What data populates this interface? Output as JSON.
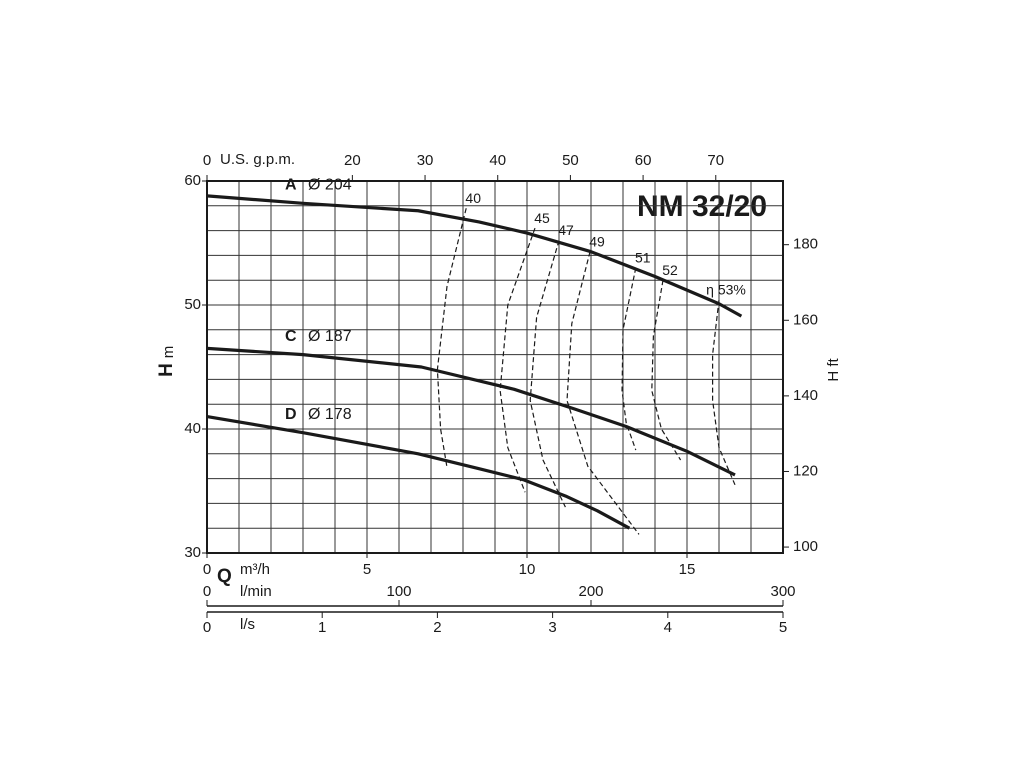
{
  "chart_data": {
    "type": "line",
    "title": "NM 32/20",
    "y_label_symbol": "H",
    "y_label_unit": "m",
    "x_label_symbol": "Q",
    "x_label_unit": "m³/h",
    "xlim": [
      0,
      18
    ],
    "xticks": [
      0,
      5,
      10,
      15
    ],
    "ylim": [
      30,
      60
    ],
    "yticks": [
      30,
      40,
      50,
      60
    ],
    "xgrid": [
      1,
      2,
      3,
      4,
      5,
      6,
      7,
      8,
      9,
      10,
      11,
      12,
      13,
      14,
      15,
      16,
      17
    ],
    "ygrid": [
      32,
      34,
      36,
      38,
      40,
      42,
      44,
      46,
      48,
      50,
      52,
      54,
      56,
      58
    ],
    "grid": true,
    "y2_label": "H ft",
    "y2lim": [
      98.43,
      196.85
    ],
    "y2ticks": [
      100,
      120,
      140,
      160,
      180
    ],
    "top_axis": {
      "label": "U.S. g.p.m.",
      "xlim": [
        0,
        79.25
      ],
      "xticks": [
        0,
        20,
        30,
        40,
        50,
        60,
        70
      ]
    },
    "lmin_axis": {
      "label": "l/min",
      "xlim": [
        0,
        300
      ],
      "xticks": [
        0,
        100,
        200,
        300
      ]
    },
    "ls_axis": {
      "label": "l/s",
      "xlim": [
        0,
        5
      ],
      "xticks": [
        0,
        1,
        2,
        3,
        4,
        5
      ]
    },
    "series": [
      {
        "name": "A",
        "diameter": "Ø 204",
        "color": "#1a1a1a",
        "x": [
          0,
          3,
          6.6,
          8.5,
          10,
          12,
          14,
          16,
          16.7
        ],
        "values": [
          58.8,
          58.2,
          57.6,
          56.7,
          55.8,
          54.3,
          52.3,
          50.1,
          49.1
        ]
      },
      {
        "name": "C",
        "diameter": "Ø 187",
        "color": "#1a1a1a",
        "x": [
          0,
          3,
          6.7,
          9.6,
          11.5,
          13.1,
          15,
          16.5
        ],
        "values": [
          46.5,
          46.0,
          45.0,
          43.2,
          41.6,
          40.2,
          38.2,
          36.3
        ]
      },
      {
        "name": "D",
        "diameter": "Ø 178",
        "color": "#1a1a1a",
        "x": [
          0,
          3,
          6.6,
          8.5,
          9.9,
          11.2,
          12.2,
          13.2
        ],
        "values": [
          41.0,
          39.7,
          38.0,
          36.8,
          35.9,
          34.6,
          33.4,
          32.0
        ]
      }
    ],
    "efficiency_series": [
      {
        "name": "40",
        "x": [
          8.1,
          7.5,
          7.2,
          7.3,
          7.5
        ],
        "values": [
          57.8,
          51.5,
          44.8,
          40.0,
          36.9
        ]
      },
      {
        "name": "45",
        "x": [
          10.25,
          9.4,
          9.16,
          9.4,
          9.94
        ],
        "values": [
          56.2,
          50.0,
          43.1,
          38.5,
          34.9
        ]
      },
      {
        "name": "47",
        "x": [
          11.0,
          10.3,
          10.1,
          10.5,
          11.2
        ],
        "values": [
          55.2,
          49.0,
          42.3,
          37.5,
          33.7
        ]
      },
      {
        "name": "49",
        "x": [
          11.97,
          11.4,
          11.25,
          11.9,
          13.5
        ],
        "values": [
          54.3,
          48.5,
          42.3,
          37.0,
          31.5
        ]
      },
      {
        "name": "51",
        "x": [
          13.4,
          13.0,
          12.97,
          13.1,
          13.4
        ],
        "values": [
          53.0,
          48.0,
          43.1,
          40.5,
          38.3
        ]
      },
      {
        "name": "52",
        "x": [
          14.25,
          13.95,
          13.9,
          14.2,
          14.8
        ],
        "values": [
          52.0,
          47.5,
          43.1,
          40.0,
          37.5
        ]
      },
      {
        "name": "η 53%",
        "x": [
          16.0,
          15.8,
          15.8,
          16.0,
          16.5
        ],
        "values": [
          50.4,
          46.0,
          42.3,
          38.5,
          35.5
        ]
      }
    ]
  }
}
